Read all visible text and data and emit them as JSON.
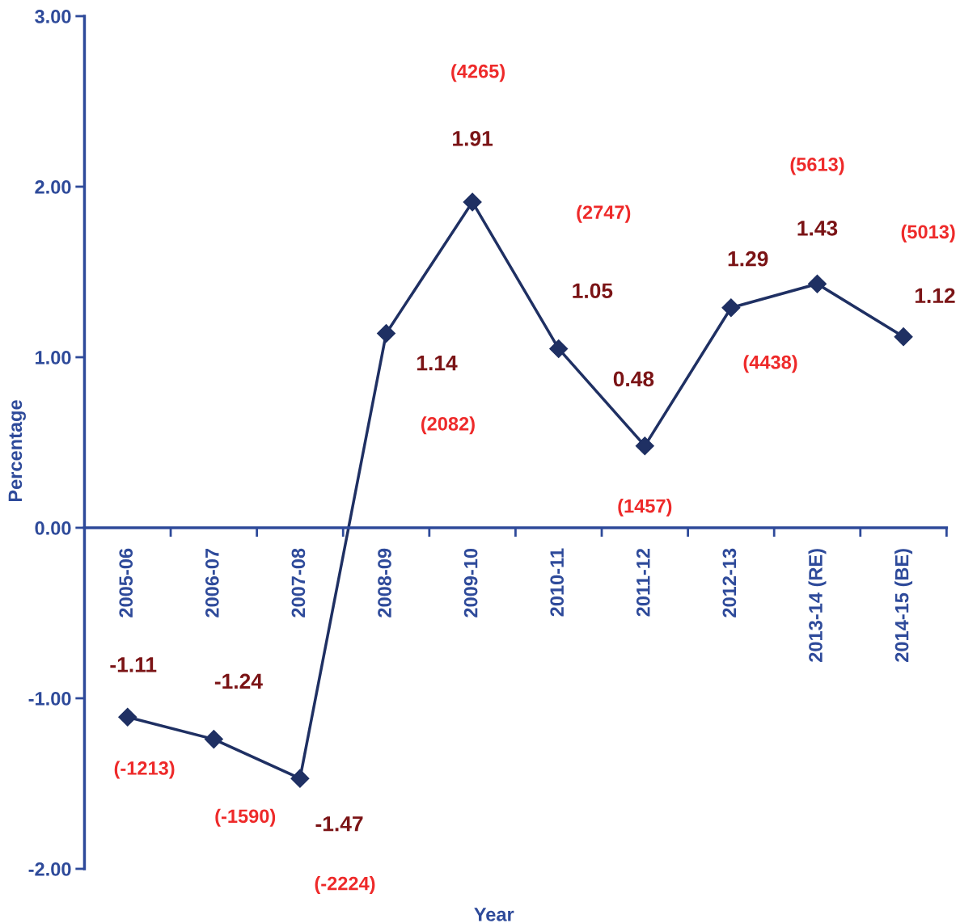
{
  "chart_data": {
    "type": "line",
    "xlabel": "Year",
    "ylabel": "Percentage",
    "categories": [
      "2005-06",
      "2006-07",
      "2007-08",
      "2008-09",
      "2009-10",
      "2010-11",
      "2011-12",
      "2012-13",
      "2013-14 (RE)",
      "2014-15 (BE)"
    ],
    "series": [
      {
        "color": "#1f3063",
        "values": [
          -1.11,
          -1.24,
          -1.47,
          1.14,
          1.91,
          1.05,
          0.48,
          1.29,
          1.43,
          1.12
        ]
      }
    ],
    "marker": "diamond",
    "line_style": "solid",
    "data_labels": true,
    "grid": false,
    "legend": false,
    "ylim": [
      -2,
      3
    ],
    "yticks": [
      {
        "value": -2,
        "label": "-2.00"
      },
      {
        "value": -1,
        "label": "-1.00"
      },
      {
        "value": 0,
        "label": "0.00"
      },
      {
        "value": 1,
        "label": "1.00"
      },
      {
        "value": 2,
        "label": "2.00"
      },
      {
        "value": 3,
        "label": "3.00"
      }
    ],
    "annotations": [
      "(-1213)",
      "(-1590)",
      "(-2224)",
      "(2082)",
      "(4265)",
      "(2747)",
      "(1457)",
      "(4438)",
      "(5613)",
      "(5013)"
    ]
  }
}
